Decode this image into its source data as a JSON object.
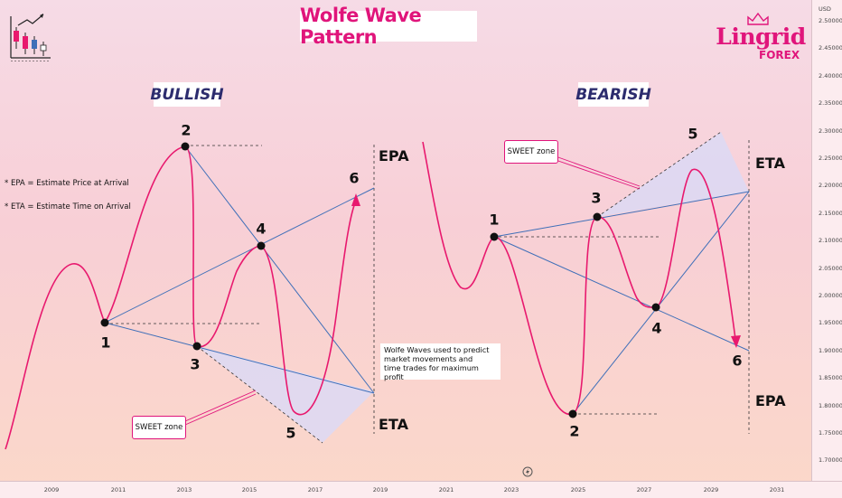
{
  "title": "Wolfe Wave Pattern",
  "sections": {
    "bullish_label": "BULLISH",
    "bearish_label": "BEARISH"
  },
  "brand": {
    "name": "Lingrid",
    "sub": "FOREX"
  },
  "notes": {
    "epa": "* EPA = Estimate Price at Arrival",
    "eta": "* ETA = Estimate Time on Arrival"
  },
  "info": {
    "line1": "Wolfe Waves used to predict",
    "line2": "market movements and",
    "line3": "time trades for maximum profit"
  },
  "sweet_zone_label": "SWEET zone",
  "bullish_points": [
    "1",
    "2",
    "3",
    "4",
    "5",
    "6"
  ],
  "bearish_points": [
    "1",
    "2",
    "3",
    "4",
    "5",
    "6"
  ],
  "side_labels": {
    "bull_epa": "EPA",
    "bull_eta": "ETA",
    "bear_eta": "ETA",
    "bear_epa": "EPA"
  },
  "axis": {
    "currency": "USD",
    "y_ticks": [
      "2.50000",
      "2.45000",
      "2.40000",
      "2.35000",
      "2.30000",
      "2.25000",
      "2.20000",
      "2.15000",
      "2.10000",
      "2.05000",
      "2.00000",
      "1.95000",
      "1.90000",
      "1.85000",
      "1.80000",
      "1.75000",
      "1.70000"
    ],
    "x_ticks": [
      "2009",
      "2011",
      "2013",
      "2015",
      "2017",
      "2019",
      "2021",
      "2023",
      "2025",
      "2027",
      "2029",
      "2031"
    ]
  },
  "colors": {
    "accent": "#e0157b",
    "wave": "#e8196e",
    "lines": "#3f6fb8",
    "zone": "#dcd9f5"
  }
}
